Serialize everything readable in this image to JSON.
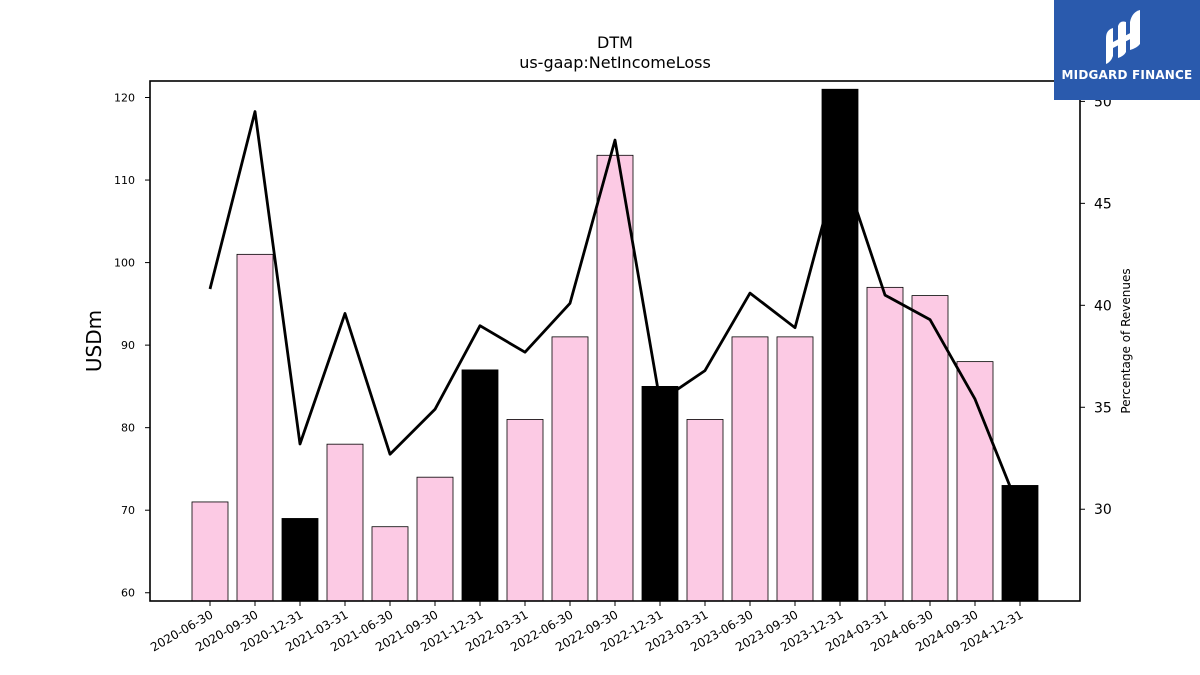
{
  "chart_data": {
    "type": "bar",
    "title": "DTM",
    "subtitle": "us-gaap:NetIncomeLoss",
    "ylabel": "USDm",
    "y2label": "Percentage of Revenues",
    "ylim": [
      59,
      122
    ],
    "y2lim": [
      25.5,
      51
    ],
    "yticks": [
      60,
      70,
      80,
      90,
      100,
      110,
      120
    ],
    "y2ticks": [
      30,
      35,
      40,
      45,
      50
    ],
    "categories": [
      "2020-06-30",
      "2020-09-30",
      "2020-12-31",
      "2021-03-31",
      "2021-06-30",
      "2021-09-30",
      "2021-12-31",
      "2022-03-31",
      "2022-06-30",
      "2022-09-30",
      "2022-12-31",
      "2023-03-31",
      "2023-06-30",
      "2023-09-30",
      "2023-12-31",
      "2024-03-31",
      "2024-06-30",
      "2024-09-30",
      "2024-12-31"
    ],
    "values": [
      71,
      101,
      69,
      78,
      68,
      74,
      87,
      81,
      91,
      113,
      85,
      81,
      91,
      91,
      121,
      97,
      96,
      88,
      73
    ],
    "quarter_end_flags": [
      false,
      false,
      true,
      false,
      false,
      false,
      true,
      false,
      false,
      false,
      true,
      false,
      false,
      false,
      true,
      false,
      false,
      false,
      true
    ],
    "line_series": {
      "name": "Percentage of Revenues",
      "values": [
        40.8,
        49.5,
        33.2,
        39.6,
        32.7,
        34.9,
        39.0,
        37.7,
        40.1,
        48.1,
        35.3,
        36.8,
        40.6,
        38.9,
        47.1,
        40.5,
        39.3,
        35.4,
        29.9
      ]
    },
    "colors": {
      "bar": "#fccae4",
      "bar_highlight": "#000000",
      "line": "#000000"
    },
    "grid": false
  },
  "logo": {
    "name": "MIDGARD FINANCE",
    "color": "#2a5aad"
  }
}
